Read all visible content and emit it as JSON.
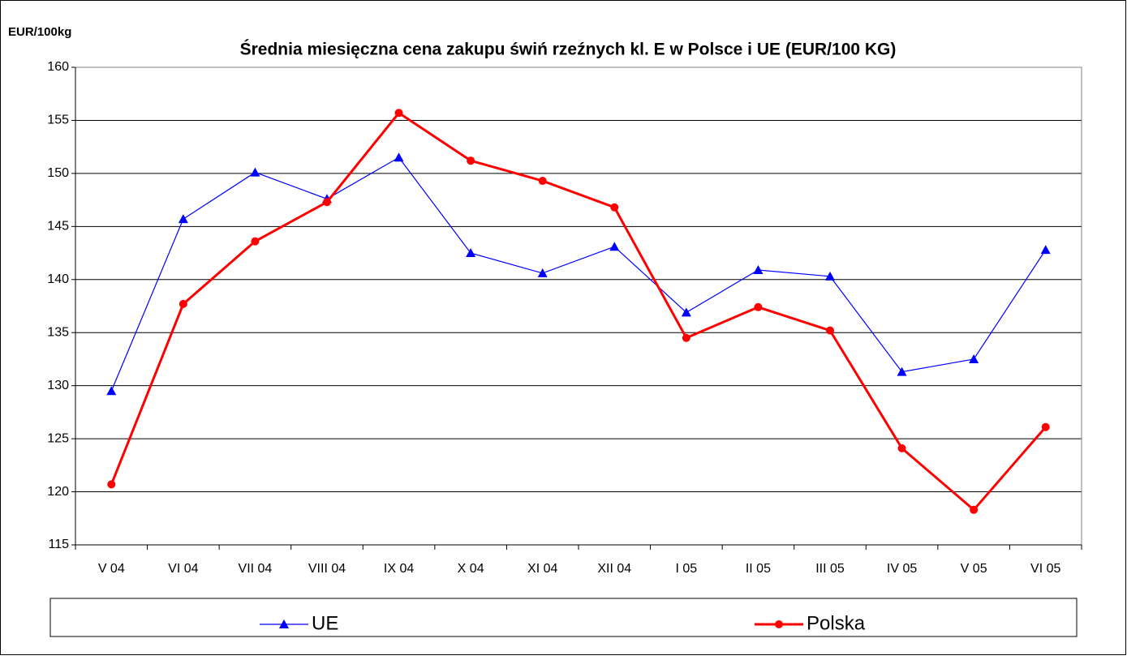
{
  "chart_data": {
    "type": "line",
    "title": "Średnia miesięczna cena zakupu świń rzeźnych kl. E w  Polsce i UE (EUR/100 KG)",
    "y_label": "EUR/100kg",
    "categories": [
      "V  04",
      "VI 04",
      "VII 04",
      "VIII 04",
      "IX 04",
      "X 04",
      "XI 04",
      "XII 04",
      "I 05",
      "II 05",
      "III 05",
      "IV 05",
      "V 05",
      "VI 05"
    ],
    "series": [
      {
        "name": "UE",
        "color": "#0000ff",
        "marker": "triangle",
        "values": [
          129.5,
          145.7,
          150.1,
          147.6,
          151.5,
          142.5,
          140.6,
          143.1,
          136.9,
          140.9,
          140.3,
          131.3,
          132.5,
          142.8
        ]
      },
      {
        "name": "Polska",
        "color": "#ff0000",
        "marker": "circle",
        "values": [
          120.7,
          137.7,
          143.6,
          147.3,
          155.7,
          151.2,
          149.3,
          146.8,
          134.5,
          137.4,
          135.2,
          124.1,
          118.3,
          126.1
        ]
      }
    ],
    "ylim": [
      115,
      160
    ],
    "yticks": [
      115,
      120,
      125,
      130,
      135,
      140,
      145,
      150,
      155,
      160
    ],
    "grid": true
  }
}
